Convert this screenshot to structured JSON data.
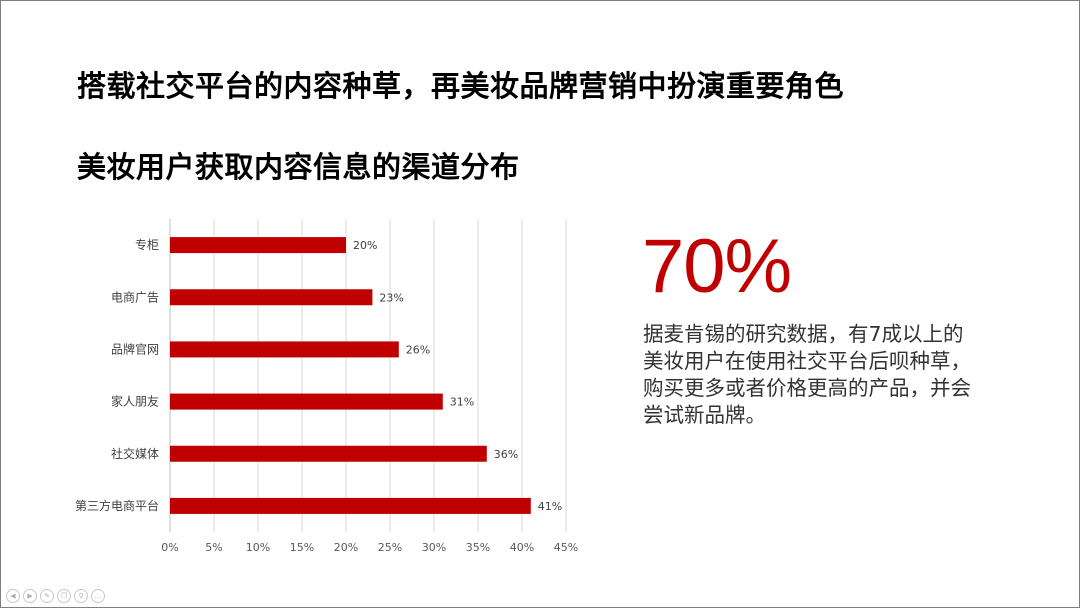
{
  "slide": {
    "headline": "搭载社交平台的内容种草，再美妆品牌营销中扮演重要角色",
    "subhead": "美妆用户获取内容信息的渠道分布"
  },
  "stat": {
    "value": "70%",
    "description": "据麦肯锡的研究数据，有7成以上的美妆用户在使用社交平台后呗种草，购买更多或者价格更高的产品，并会尝试新品牌。"
  },
  "chart_data": {
    "type": "bar",
    "orientation": "horizontal",
    "categories": [
      "专柜",
      "电商广告",
      "品牌官网",
      "家人朋友",
      "社交媒体",
      "第三方电商平台"
    ],
    "values": [
      20,
      23,
      26,
      31,
      36,
      41
    ],
    "value_labels": [
      "20%",
      "23%",
      "26%",
      "31%",
      "36%",
      "41%"
    ],
    "xlim": [
      0,
      45
    ],
    "x_ticks": [
      0,
      5,
      10,
      15,
      20,
      25,
      30,
      35,
      40,
      45
    ],
    "x_tick_labels": [
      "0%",
      "5%",
      "10%",
      "15%",
      "20%",
      "25%",
      "30%",
      "35%",
      "40%",
      "45%"
    ],
    "bar_color": "#c00000",
    "grid": true,
    "title": "",
    "xlabel": "",
    "ylabel": ""
  },
  "colors": {
    "accent": "#c00000",
    "grid": "#d9d9d9"
  },
  "navigation": {
    "icons": [
      "prev-icon",
      "next-icon",
      "pen-icon",
      "copy-icon",
      "zoom-icon",
      "more-icon"
    ]
  }
}
